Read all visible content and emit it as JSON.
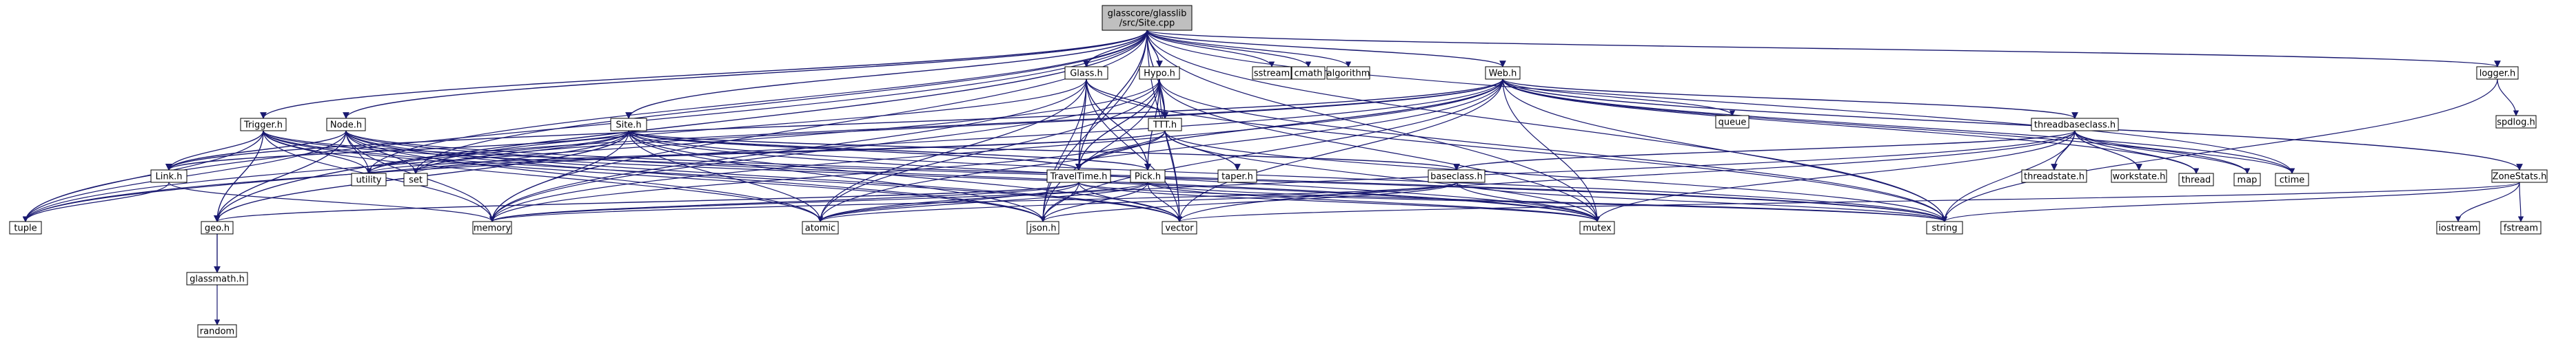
{
  "diagram": {
    "nodes": [
      {
        "id": "root",
        "lines": [
          "glasscore/glasslib",
          "/src/Site.cpp"
        ],
        "kind": "root"
      },
      {
        "id": "glass",
        "lines": [
          "Glass.h"
        ],
        "kind": "local"
      },
      {
        "id": "hypo",
        "lines": [
          "Hypo.h"
        ],
        "kind": "local"
      },
      {
        "id": "web",
        "lines": [
          "Web.h"
        ],
        "kind": "local"
      },
      {
        "id": "logger",
        "lines": [
          "logger.h"
        ],
        "kind": "local"
      },
      {
        "id": "trigger",
        "lines": [
          "Trigger.h"
        ],
        "kind": "local"
      },
      {
        "id": "node",
        "lines": [
          "Node.h"
        ],
        "kind": "local"
      },
      {
        "id": "site",
        "lines": [
          "Site.h"
        ],
        "kind": "local"
      },
      {
        "id": "ttt",
        "lines": [
          "TTT.h"
        ],
        "kind": "local"
      },
      {
        "id": "tbase",
        "lines": [
          "threadbaseclass.h"
        ],
        "kind": "local"
      },
      {
        "id": "link",
        "lines": [
          "Link.h"
        ],
        "kind": "local"
      },
      {
        "id": "travel",
        "lines": [
          "TravelTime.h"
        ],
        "kind": "local"
      },
      {
        "id": "taper",
        "lines": [
          "taper.h"
        ],
        "kind": "local"
      },
      {
        "id": "pick",
        "lines": [
          "Pick.h"
        ],
        "kind": "local"
      },
      {
        "id": "base",
        "lines": [
          "baseclass.h"
        ],
        "kind": "local"
      },
      {
        "id": "tstate",
        "lines": [
          "threadstate.h"
        ],
        "kind": "local"
      },
      {
        "id": "wstate",
        "lines": [
          "workstate.h"
        ],
        "kind": "local"
      },
      {
        "id": "zone",
        "lines": [
          "ZoneStats.h"
        ],
        "kind": "local"
      },
      {
        "id": "geo",
        "lines": [
          "geo.h"
        ],
        "kind": "local"
      },
      {
        "id": "gmath",
        "lines": [
          "glassmath.h"
        ],
        "kind": "local"
      },
      {
        "id": "sstream",
        "lines": [
          "sstream"
        ],
        "kind": "sys"
      },
      {
        "id": "cmath",
        "lines": [
          "cmath"
        ],
        "kind": "sys"
      },
      {
        "id": "algo",
        "lines": [
          "algorithm"
        ],
        "kind": "sys"
      },
      {
        "id": "queue",
        "lines": [
          "queue"
        ],
        "kind": "sys"
      },
      {
        "id": "spdlog",
        "lines": [
          "spdlog.h"
        ],
        "kind": "sys"
      },
      {
        "id": "utility",
        "lines": [
          "utility"
        ],
        "kind": "sys"
      },
      {
        "id": "set",
        "lines": [
          "set"
        ],
        "kind": "sys"
      },
      {
        "id": "thread",
        "lines": [
          "thread"
        ],
        "kind": "sys"
      },
      {
        "id": "map",
        "lines": [
          "map"
        ],
        "kind": "sys"
      },
      {
        "id": "ctime",
        "lines": [
          "ctime"
        ],
        "kind": "sys"
      },
      {
        "id": "tuple",
        "lines": [
          "tuple"
        ],
        "kind": "sys"
      },
      {
        "id": "memory",
        "lines": [
          "memory"
        ],
        "kind": "sys"
      },
      {
        "id": "atomic",
        "lines": [
          "atomic"
        ],
        "kind": "sys"
      },
      {
        "id": "json",
        "lines": [
          "json.h"
        ],
        "kind": "sys"
      },
      {
        "id": "vector",
        "lines": [
          "vector"
        ],
        "kind": "sys"
      },
      {
        "id": "mutex",
        "lines": [
          "mutex"
        ],
        "kind": "sys"
      },
      {
        "id": "string",
        "lines": [
          "string"
        ],
        "kind": "sys"
      },
      {
        "id": "iostream",
        "lines": [
          "iostream"
        ],
        "kind": "sys"
      },
      {
        "id": "fstream",
        "lines": [
          "fstream"
        ],
        "kind": "sys"
      },
      {
        "id": "random",
        "lines": [
          "random"
        ],
        "kind": "sys"
      }
    ],
    "edges": [
      [
        "root",
        "glass"
      ],
      [
        "root",
        "hypo"
      ],
      [
        "root",
        "web"
      ],
      [
        "root",
        "logger"
      ],
      [
        "root",
        "trigger"
      ],
      [
        "root",
        "node"
      ],
      [
        "root",
        "site"
      ],
      [
        "root",
        "sstream"
      ],
      [
        "root",
        "cmath"
      ],
      [
        "root",
        "algo"
      ],
      [
        "root",
        "tuple"
      ],
      [
        "root",
        "geo"
      ],
      [
        "root",
        "utility"
      ],
      [
        "root",
        "set"
      ],
      [
        "root",
        "json"
      ],
      [
        "root",
        "vector"
      ],
      [
        "root",
        "mutex"
      ],
      [
        "root",
        "string"
      ],
      [
        "root",
        "ctime"
      ],
      [
        "root",
        "memory"
      ],
      [
        "root",
        "ttt"
      ],
      [
        "root",
        "travel"
      ],
      [
        "glass",
        "ttt"
      ],
      [
        "glass",
        "travel"
      ],
      [
        "glass",
        "json"
      ],
      [
        "glass",
        "vector"
      ],
      [
        "glass",
        "atomic"
      ],
      [
        "glass",
        "memory"
      ],
      [
        "glass",
        "set"
      ],
      [
        "glass",
        "string"
      ],
      [
        "glass",
        "pick"
      ],
      [
        "hypo",
        "ttt"
      ],
      [
        "hypo",
        "travel"
      ],
      [
        "hypo",
        "json"
      ],
      [
        "hypo",
        "vector"
      ],
      [
        "hypo",
        "atomic"
      ],
      [
        "hypo",
        "tuple"
      ],
      [
        "hypo",
        "mutex"
      ],
      [
        "hypo",
        "string"
      ],
      [
        "hypo",
        "memory"
      ],
      [
        "hypo",
        "pick"
      ],
      [
        "web",
        "tbase"
      ],
      [
        "web",
        "zone"
      ],
      [
        "web",
        "queue"
      ],
      [
        "web",
        "travel"
      ],
      [
        "web",
        "json"
      ],
      [
        "web",
        "vector"
      ],
      [
        "web",
        "mutex"
      ],
      [
        "web",
        "thread"
      ],
      [
        "web",
        "map"
      ],
      [
        "web",
        "ctime"
      ],
      [
        "web",
        "memory"
      ],
      [
        "web",
        "tuple"
      ],
      [
        "web",
        "atomic"
      ],
      [
        "web",
        "string"
      ],
      [
        "web",
        "utility"
      ],
      [
        "web",
        "set"
      ],
      [
        "web",
        "link"
      ],
      [
        "logger",
        "spdlog"
      ],
      [
        "logger",
        "string"
      ],
      [
        "trigger",
        "link"
      ],
      [
        "trigger",
        "geo"
      ],
      [
        "trigger",
        "tuple"
      ],
      [
        "trigger",
        "memory"
      ],
      [
        "trigger",
        "atomic"
      ],
      [
        "trigger",
        "vector"
      ],
      [
        "trigger",
        "mutex"
      ],
      [
        "trigger",
        "utility"
      ],
      [
        "trigger",
        "string"
      ],
      [
        "trigger",
        "json"
      ],
      [
        "node",
        "link"
      ],
      [
        "node",
        "geo"
      ],
      [
        "node",
        "tuple"
      ],
      [
        "node",
        "memory"
      ],
      [
        "node",
        "utility"
      ],
      [
        "node",
        "vector"
      ],
      [
        "node",
        "mutex"
      ],
      [
        "node",
        "atomic"
      ],
      [
        "node",
        "string"
      ],
      [
        "node",
        "json"
      ],
      [
        "node",
        "set"
      ],
      [
        "site",
        "link"
      ],
      [
        "site",
        "geo"
      ],
      [
        "site",
        "tuple"
      ],
      [
        "site",
        "memory"
      ],
      [
        "site",
        "atomic"
      ],
      [
        "site",
        "vector"
      ],
      [
        "site",
        "mutex"
      ],
      [
        "site",
        "utility"
      ],
      [
        "site",
        "string"
      ],
      [
        "site",
        "json"
      ],
      [
        "site",
        "set"
      ],
      [
        "site",
        "travel"
      ],
      [
        "site",
        "pick"
      ],
      [
        "site",
        "base"
      ],
      [
        "ttt",
        "travel"
      ],
      [
        "ttt",
        "taper"
      ],
      [
        "ttt",
        "mutex"
      ],
      [
        "ttt",
        "string"
      ],
      [
        "ttt",
        "memory"
      ],
      [
        "ttt",
        "utility"
      ],
      [
        "ttt",
        "set"
      ],
      [
        "tbase",
        "tstate"
      ],
      [
        "tbase",
        "wstate"
      ],
      [
        "tbase",
        "thread"
      ],
      [
        "tbase",
        "map"
      ],
      [
        "tbase",
        "ctime"
      ],
      [
        "tbase",
        "mutex"
      ],
      [
        "tbase",
        "atomic"
      ],
      [
        "tbase",
        "string"
      ],
      [
        "tbase",
        "vector"
      ],
      [
        "tbase",
        "base"
      ],
      [
        "link",
        "memory"
      ],
      [
        "link",
        "tuple"
      ],
      [
        "travel",
        "json"
      ],
      [
        "travel",
        "memory"
      ],
      [
        "travel",
        "atomic"
      ],
      [
        "travel",
        "geo"
      ],
      [
        "travel",
        "vector"
      ],
      [
        "travel",
        "string"
      ],
      [
        "travel",
        "mutex"
      ],
      [
        "pick",
        "json"
      ],
      [
        "pick",
        "vector"
      ],
      [
        "pick",
        "atomic"
      ],
      [
        "pick",
        "memory"
      ],
      [
        "pick",
        "mutex"
      ],
      [
        "pick",
        "string"
      ],
      [
        "base",
        "json"
      ],
      [
        "base",
        "string"
      ],
      [
        "base",
        "mutex"
      ],
      [
        "base",
        "memory"
      ],
      [
        "base",
        "atomic"
      ],
      [
        "zone",
        "iostream"
      ],
      [
        "zone",
        "fstream"
      ],
      [
        "zone",
        "string"
      ],
      [
        "zone",
        "vector"
      ],
      [
        "geo",
        "gmath"
      ],
      [
        "gmath",
        "random"
      ]
    ]
  },
  "colors": {
    "root_fill": "#bfbfbf",
    "local_fill": "#ffffff",
    "sys_fill": "#ffffff",
    "sys_border": "#bfbfbf",
    "edge": "#191970"
  }
}
